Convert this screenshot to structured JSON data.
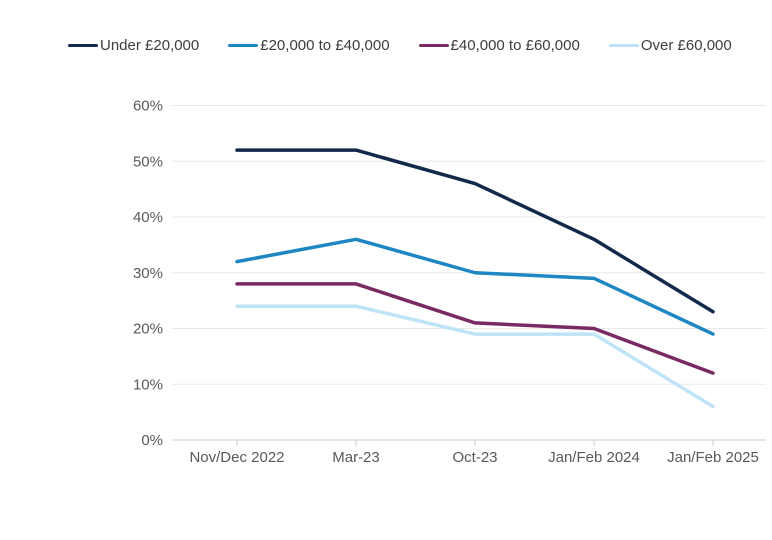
{
  "chart_data": {
    "type": "line",
    "title": "",
    "categories": [
      "Nov/Dec 2022",
      "Mar-23",
      "Oct-23",
      "Jan/Feb 2024",
      "Jan/Feb 2025"
    ],
    "series": [
      {
        "name": "Under £20,000",
        "color": "#12294b",
        "values": [
          52,
          52,
          46,
          36,
          23
        ]
      },
      {
        "name": "£20,000 to £40,000",
        "color": "#1e86c3",
        "values": [
          32,
          36,
          30,
          29,
          19
        ]
      },
      {
        "name": "£40,000 to £60,000",
        "color": "#7a2a63",
        "values": [
          28,
          28,
          21,
          20,
          12
        ]
      },
      {
        "name": "Over £60,000",
        "color": "#bfe4f8",
        "values": [
          24,
          24,
          19,
          19,
          6
        ]
      }
    ],
    "y_axis": {
      "min": 0,
      "max": 60,
      "step": 10,
      "unit": "%",
      "tick_labels": [
        "0%",
        "10%",
        "20%",
        "30%",
        "40%",
        "50%",
        "60%"
      ]
    },
    "x_axis": {
      "label": ""
    },
    "grid": "horizontal",
    "legend_position": "top"
  },
  "colors": {
    "background": "#ffffff",
    "gridline": "#e9e9e9",
    "axis_line": "#cccccc",
    "tick_mark": "#cccccc",
    "tick_label_text": "#595959",
    "legend_text": "#3d3d3d"
  }
}
